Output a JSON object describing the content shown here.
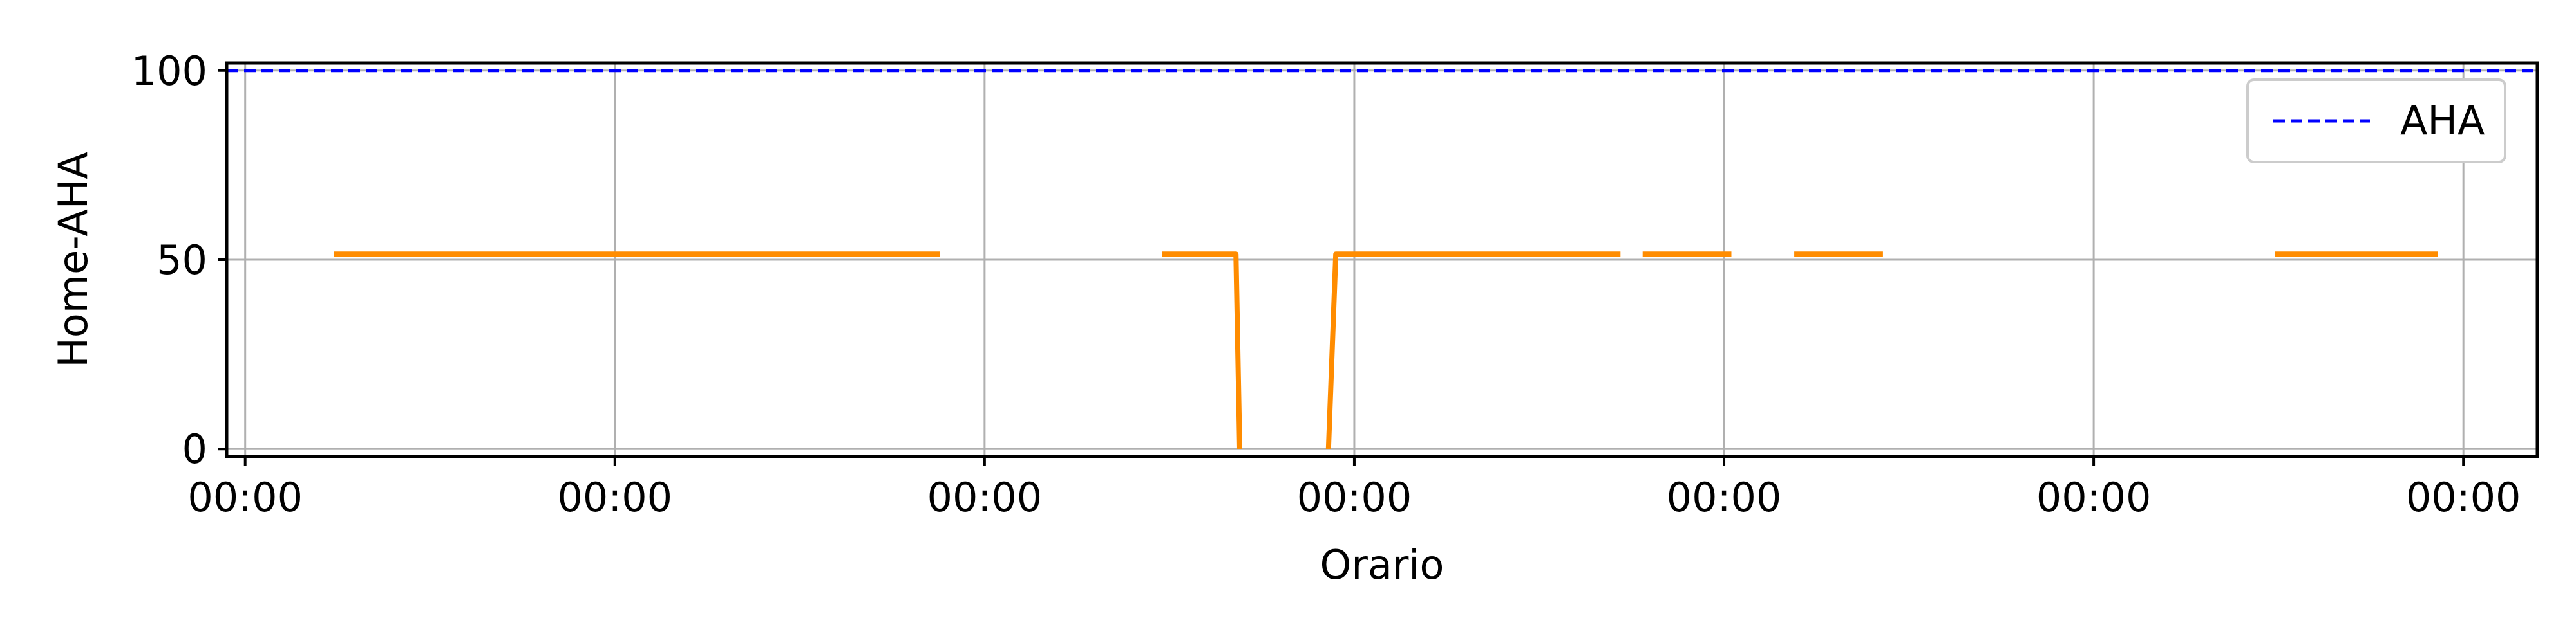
{
  "chart_data": {
    "type": "line",
    "xlabel": "Orario",
    "ylabel": "Home-AHA",
    "ylim": [
      0,
      100
    ],
    "xlim": [
      -0.05,
      6.2
    ],
    "grid": true,
    "legend_position": "top-right",
    "yticks": [
      {
        "value": 0,
        "label": "0"
      },
      {
        "value": 50,
        "label": "50"
      },
      {
        "value": 100,
        "label": "100"
      }
    ],
    "xticks": [
      {
        "value": 0,
        "label": "00:00"
      },
      {
        "value": 1,
        "label": "00:00"
      },
      {
        "value": 2,
        "label": "00:00"
      },
      {
        "value": 3,
        "label": "00:00"
      },
      {
        "value": 4,
        "label": "00:00"
      },
      {
        "value": 5,
        "label": "00:00"
      },
      {
        "value": 6,
        "label": "00:00"
      }
    ],
    "series": [
      {
        "name": "",
        "color": "#ff8c00",
        "style": "solid",
        "segments": [
          [
            [
              0.24,
              51.5
            ],
            [
              1.88,
              51.5
            ]
          ],
          [
            [
              2.48,
              51.5
            ],
            [
              2.68,
              51.5
            ],
            [
              2.69,
              0
            ]
          ],
          [
            [
              2.93,
              0
            ],
            [
              2.95,
              51.5
            ],
            [
              3.72,
              51.5
            ]
          ],
          [
            [
              3.78,
              51.5
            ],
            [
              4.02,
              51.5
            ]
          ],
          [
            [
              4.19,
              51.5
            ],
            [
              4.43,
              51.5
            ]
          ],
          [
            [
              5.49,
              51.5
            ],
            [
              5.93,
              51.5
            ]
          ]
        ]
      },
      {
        "name": "AHA",
        "color": "#0000ff",
        "style": "dashed",
        "segments": [
          [
            [
              -0.05,
              100
            ],
            [
              6.2,
              100
            ]
          ]
        ]
      }
    ]
  }
}
